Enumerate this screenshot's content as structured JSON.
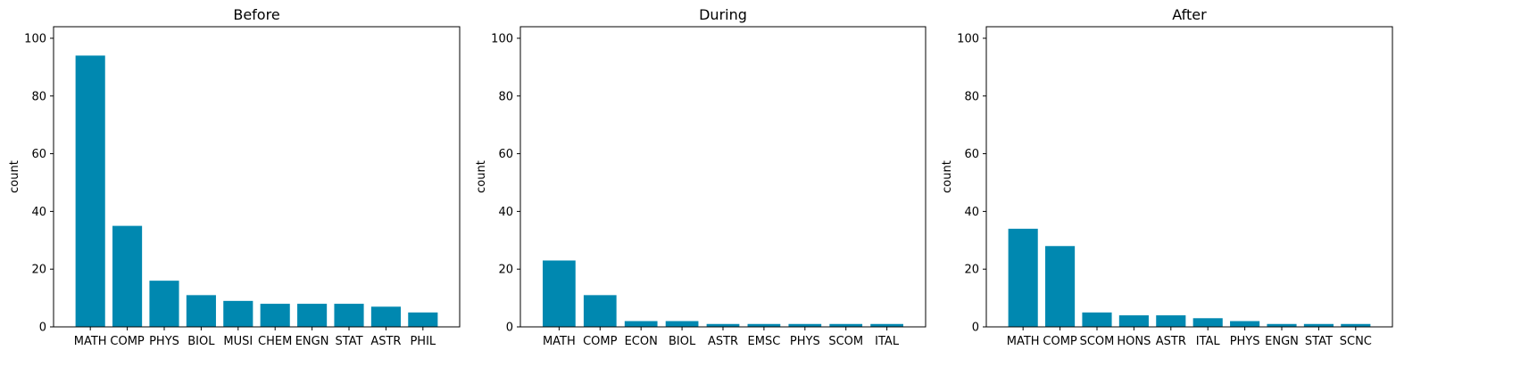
{
  "chart_data": [
    {
      "type": "bar",
      "title": "Before",
      "xlabel": "",
      "ylabel": "count",
      "ylim": [
        0,
        104
      ],
      "yticks": [
        0,
        20,
        40,
        60,
        80,
        100
      ],
      "categories": [
        "MATH",
        "COMP",
        "PHYS",
        "BIOL",
        "MUSI",
        "CHEM",
        "ENGN",
        "STAT",
        "ASTR",
        "PHIL"
      ],
      "values": [
        94,
        35,
        16,
        11,
        9,
        8,
        8,
        8,
        7,
        5
      ],
      "color": "#0088b0",
      "grid": false
    },
    {
      "type": "bar",
      "title": "During",
      "xlabel": "",
      "ylabel": "count",
      "ylim": [
        0,
        104
      ],
      "yticks": [
        0,
        20,
        40,
        60,
        80,
        100
      ],
      "categories": [
        "MATH",
        "COMP",
        "ECON",
        "BIOL",
        "ASTR",
        "EMSC",
        "PHYS",
        "SCOM",
        "ITAL"
      ],
      "values": [
        23,
        11,
        2,
        2,
        1,
        1,
        1,
        1,
        1
      ],
      "color": "#0088b0",
      "grid": false
    },
    {
      "type": "bar",
      "title": "After",
      "xlabel": "",
      "ylabel": "count",
      "ylim": [
        0,
        104
      ],
      "yticks": [
        0,
        20,
        40,
        60,
        80,
        100
      ],
      "categories": [
        "MATH",
        "COMP",
        "SCOM",
        "HONS",
        "ASTR",
        "ITAL",
        "PHYS",
        "ENGN",
        "STAT",
        "SCNC"
      ],
      "values": [
        34,
        28,
        5,
        4,
        4,
        3,
        2,
        1,
        1,
        1
      ],
      "color": "#0088b0",
      "grid": false
    }
  ]
}
